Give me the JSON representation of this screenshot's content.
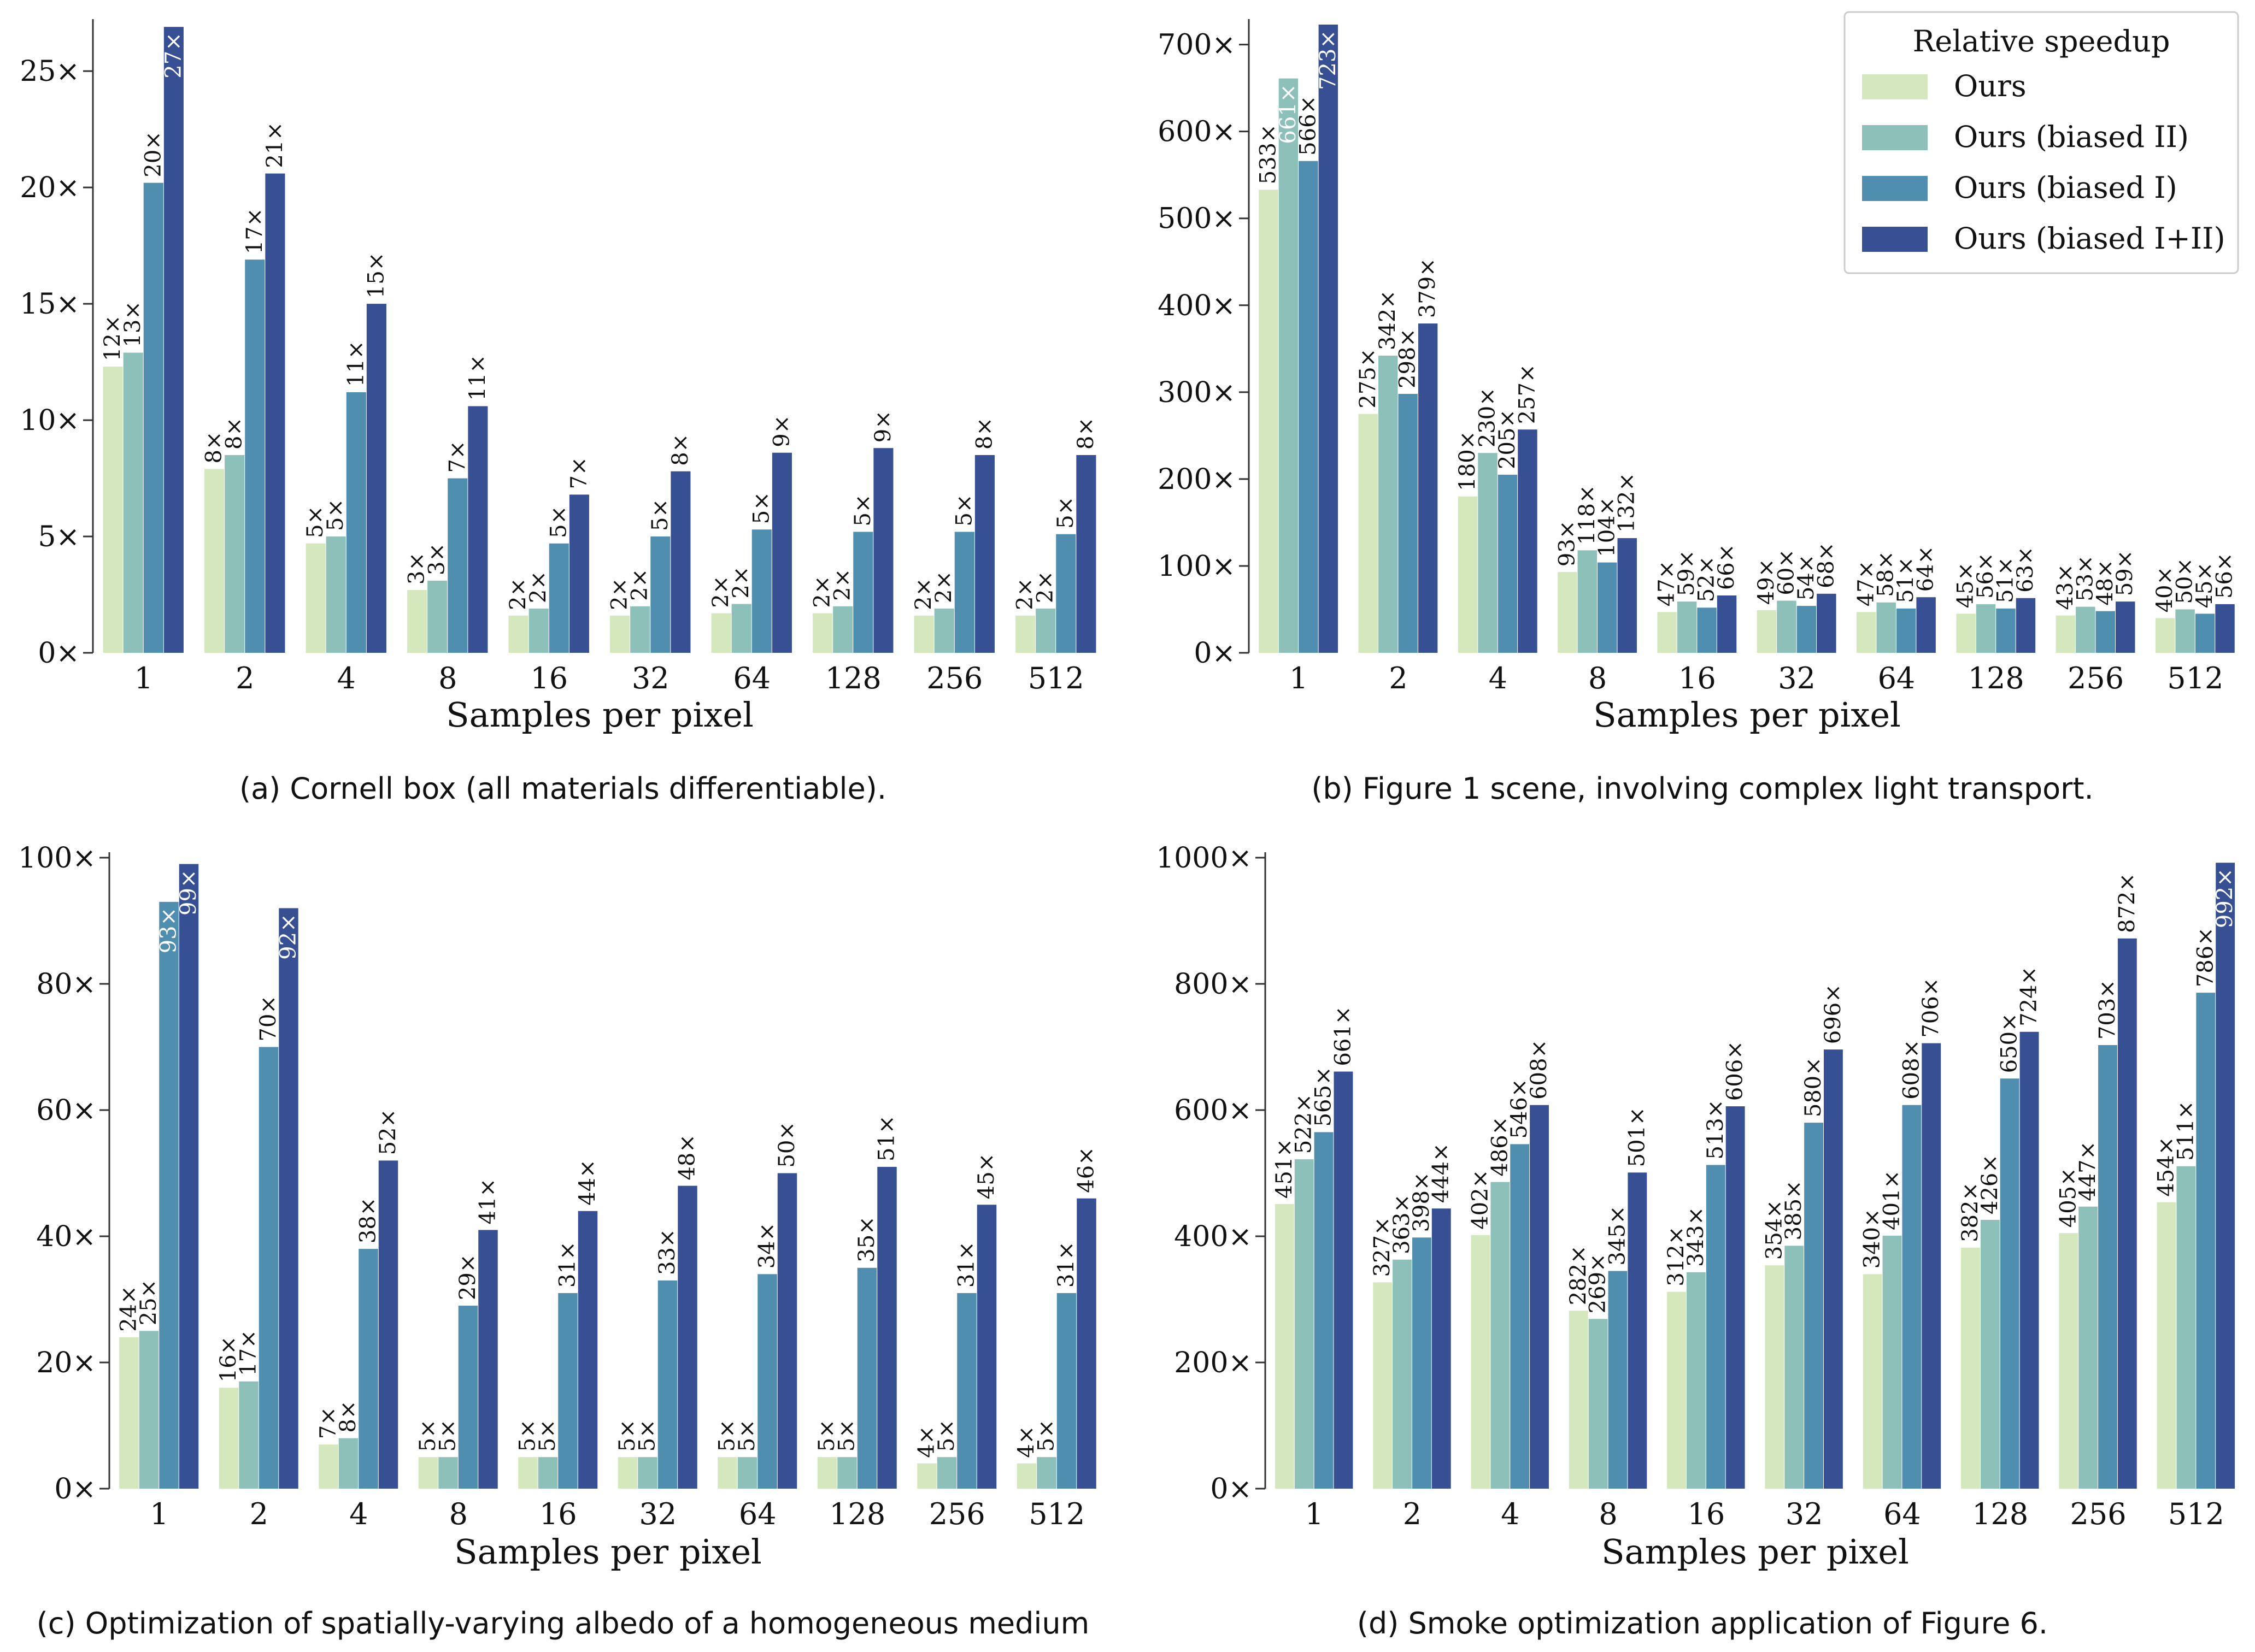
{
  "colors": {
    "ours": "#d5e8bd",
    "biased_ii": "#8dc0b8",
    "biased_i": "#4f8eae",
    "biased_i_ii": "#374f93",
    "axis": "#333333",
    "text": "#111111"
  },
  "legend": {
    "title": "Relative speedup",
    "entries": [
      "Ours",
      "Ours (biased II)",
      "Ours (biased I)",
      "Ours (biased I+II)"
    ]
  },
  "chart_data": [
    {
      "type": "bar",
      "panel": "a",
      "caption": "(a) Cornell box (all materials differentiable).",
      "xlabel": "Samples per pixel",
      "categories": [
        "1",
        "2",
        "4",
        "8",
        "16",
        "32",
        "64",
        "128",
        "256",
        "512"
      ],
      "ylim": [
        0,
        27
      ],
      "yticks": [
        0,
        5,
        10,
        15,
        20,
        25
      ],
      "yticklabels": [
        "0×",
        "5×",
        "10×",
        "15×",
        "20×",
        "25×"
      ],
      "series": [
        {
          "name": "Ours",
          "values": [
            12.3,
            7.9,
            4.7,
            2.7,
            1.6,
            1.6,
            1.7,
            1.7,
            1.6,
            1.6
          ],
          "labels": [
            "12×",
            "8×",
            "5×",
            "3×",
            "2×",
            "2×",
            "2×",
            "2×",
            "2×",
            "2×"
          ]
        },
        {
          "name": "Ours (biased II)",
          "values": [
            12.9,
            8.5,
            5.0,
            3.1,
            1.9,
            2.0,
            2.1,
            2.0,
            1.9,
            1.9
          ],
          "labels": [
            "13×",
            "8×",
            "5×",
            "3×",
            "2×",
            "2×",
            "2×",
            "2×",
            "2×",
            "2×"
          ]
        },
        {
          "name": "Ours (biased I)",
          "values": [
            20.2,
            16.9,
            11.2,
            7.5,
            4.7,
            5.0,
            5.3,
            5.2,
            5.2,
            5.1
          ],
          "labels": [
            "20×",
            "17×",
            "11×",
            "7×",
            "5×",
            "5×",
            "5×",
            "5×",
            "5×",
            "5×"
          ]
        },
        {
          "name": "Ours (biased I+II)",
          "values": [
            26.9,
            20.6,
            15.0,
            10.6,
            6.8,
            7.8,
            8.6,
            8.8,
            8.5,
            8.5
          ],
          "labels": [
            "27×",
            "21×",
            "15×",
            "11×",
            "7×",
            "8×",
            "9×",
            "9×",
            "8×",
            "8×"
          ]
        }
      ]
    },
    {
      "type": "bar",
      "panel": "b",
      "caption": "(b) Figure 1 scene, involving complex light transport.",
      "xlabel": "Samples per pixel",
      "categories": [
        "1",
        "2",
        "4",
        "8",
        "16",
        "32",
        "64",
        "128",
        "256",
        "512"
      ],
      "ylim": [
        0,
        723
      ],
      "yticks": [
        0,
        100,
        200,
        300,
        400,
        500,
        600,
        700
      ],
      "yticklabels": [
        "0×",
        "100×",
        "200×",
        "300×",
        "400×",
        "500×",
        "600×",
        "700×"
      ],
      "series": [
        {
          "name": "Ours",
          "values": [
            533,
            275,
            180,
            93,
            47,
            49,
            47,
            45,
            43,
            40
          ],
          "labels": [
            "533×",
            "275×",
            "180×",
            "93×",
            "47×",
            "49×",
            "47×",
            "45×",
            "43×",
            "40×"
          ]
        },
        {
          "name": "Ours (biased II)",
          "values": [
            661,
            342,
            230,
            118,
            59,
            60,
            58,
            56,
            53,
            50
          ],
          "labels": [
            "661×",
            "342×",
            "230×",
            "118×",
            "59×",
            "60×",
            "58×",
            "56×",
            "53×",
            "50×"
          ]
        },
        {
          "name": "Ours (biased I)",
          "values": [
            566,
            298,
            205,
            104,
            52,
            54,
            51,
            51,
            48,
            45
          ],
          "labels": [
            "566×",
            "298×",
            "205×",
            "104×",
            "52×",
            "54×",
            "51×",
            "51×",
            "48×",
            "45×"
          ]
        },
        {
          "name": "Ours (biased I+II)",
          "values": [
            723,
            379,
            257,
            132,
            66,
            68,
            64,
            63,
            59,
            56
          ],
          "labels": [
            "723×",
            "379×",
            "257×",
            "132×",
            "66×",
            "68×",
            "64×",
            "63×",
            "59×",
            "56×"
          ]
        }
      ]
    },
    {
      "type": "bar",
      "panel": "c",
      "caption": "(c) Optimization of spatially-varying albedo of a homogeneous medium",
      "xlabel": "Samples per pixel",
      "categories": [
        "1",
        "2",
        "4",
        "8",
        "16",
        "32",
        "64",
        "128",
        "256",
        "512"
      ],
      "ylim": [
        0,
        100
      ],
      "yticks": [
        0,
        20,
        40,
        60,
        80,
        100
      ],
      "yticklabels": [
        "0×",
        "20×",
        "40×",
        "60×",
        "80×",
        "100×"
      ],
      "series": [
        {
          "name": "Ours",
          "values": [
            24,
            16,
            7,
            5,
            5,
            5,
            5,
            5,
            4,
            4
          ],
          "labels": [
            "24×",
            "16×",
            "7×",
            "5×",
            "5×",
            "5×",
            "5×",
            "5×",
            "4×",
            "4×"
          ]
        },
        {
          "name": "Ours (biased II)",
          "values": [
            25,
            17,
            8,
            5,
            5,
            5,
            5,
            5,
            5,
            5
          ],
          "labels": [
            "25×",
            "17×",
            "8×",
            "5×",
            "5×",
            "5×",
            "5×",
            "5×",
            "5×",
            "5×"
          ]
        },
        {
          "name": "Ours (biased I)",
          "values": [
            93,
            70,
            38,
            29,
            31,
            33,
            34,
            35,
            31,
            31
          ],
          "labels": [
            "93×",
            "70×",
            "38×",
            "29×",
            "31×",
            "33×",
            "34×",
            "35×",
            "31×",
            "31×"
          ]
        },
        {
          "name": "Ours (biased I+II)",
          "values": [
            99,
            92,
            52,
            41,
            44,
            48,
            50,
            51,
            45,
            46
          ],
          "labels": [
            "99×",
            "92×",
            "52×",
            "41×",
            "44×",
            "48×",
            "50×",
            "51×",
            "45×",
            "46×"
          ]
        }
      ]
    },
    {
      "type": "bar",
      "panel": "d",
      "caption": "(d) Smoke optimization application of Figure 6.",
      "xlabel": "Samples per pixel",
      "categories": [
        "1",
        "2",
        "4",
        "8",
        "16",
        "32",
        "64",
        "128",
        "256",
        "512"
      ],
      "ylim": [
        0,
        1000
      ],
      "yticks": [
        0,
        200,
        400,
        600,
        800,
        1000
      ],
      "yticklabels": [
        "0×",
        "200×",
        "400×",
        "600×",
        "800×",
        "1000×"
      ],
      "series": [
        {
          "name": "Ours",
          "values": [
            451,
            327,
            402,
            282,
            312,
            354,
            340,
            382,
            405,
            454
          ],
          "labels": [
            "451×",
            "327×",
            "402×",
            "282×",
            "312×",
            "354×",
            "340×",
            "382×",
            "405×",
            "454×"
          ]
        },
        {
          "name": "Ours (biased II)",
          "values": [
            522,
            363,
            486,
            269,
            343,
            385,
            401,
            426,
            447,
            511
          ],
          "labels": [
            "522×",
            "363×",
            "486×",
            "269×",
            "343×",
            "385×",
            "401×",
            "426×",
            "447×",
            "511×"
          ]
        },
        {
          "name": "Ours (biased I)",
          "values": [
            565,
            398,
            546,
            345,
            513,
            580,
            608,
            650,
            703,
            786
          ],
          "labels": [
            "565×",
            "398×",
            "546×",
            "345×",
            "513×",
            "580×",
            "608×",
            "650×",
            "703×",
            "786×"
          ]
        },
        {
          "name": "Ours (biased I+II)",
          "values": [
            661,
            444,
            608,
            501,
            606,
            696,
            706,
            724,
            872,
            992
          ],
          "labels": [
            "661×",
            "444×",
            "608×",
            "501×",
            "606×",
            "696×",
            "706×",
            "724×",
            "872×",
            "992×"
          ]
        }
      ]
    }
  ]
}
